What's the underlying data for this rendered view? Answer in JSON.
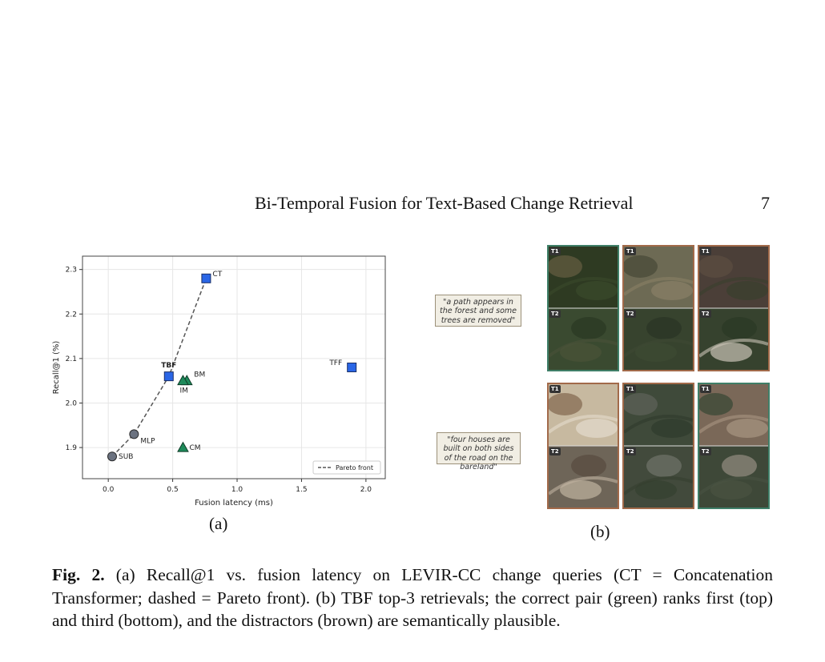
{
  "header": {
    "running_title": "Bi-Temporal Fusion for Text-Based Change Retrieval",
    "page_number": "7"
  },
  "figure": {
    "label_a": "(a)",
    "label_b": "(b)",
    "caption_label": "Fig. 2.",
    "caption_text": "(a) Recall@1 vs. fusion latency on LEVIR-CC change queries (CT = Concatenation Transformer; dashed = Pareto front). (b) TBF top-3 retrievals; the correct pair (green) ranks first (top) and third (bottom), and the distractors (brown) are semantically plausible."
  },
  "chart_data": {
    "type": "scatter",
    "xlabel": "Fusion latency (ms)",
    "ylabel": "Recall@1 (%)",
    "xlim": [
      -0.2,
      2.15
    ],
    "ylim": [
      1.83,
      2.33
    ],
    "xticks": [
      0.0,
      0.5,
      1.0,
      1.5,
      2.0
    ],
    "xtick_labels": [
      "0.0",
      "0.5",
      "1.0",
      "1.5",
      "2.0"
    ],
    "yticks": [
      1.9,
      2.0,
      2.1,
      2.2,
      2.3
    ],
    "ytick_labels": [
      "1.9",
      "2.0",
      "2.1",
      "2.2",
      "2.3"
    ],
    "grid": true,
    "legend": {
      "placement": "bottom-right",
      "entries": [
        "Pareto front"
      ]
    },
    "colors": {
      "square": "#2a66e6",
      "triangle": "#1e8a5a",
      "circle": "#6b7280"
    },
    "points": [
      {
        "name": "SUB",
        "x": 0.03,
        "y": 1.88,
        "marker": "circle"
      },
      {
        "name": "MLP",
        "x": 0.2,
        "y": 1.93,
        "marker": "circle"
      },
      {
        "name": "TBF",
        "x": 0.47,
        "y": 2.06,
        "marker": "square",
        "bold": true
      },
      {
        "name": "BM",
        "x": 0.61,
        "y": 2.05,
        "marker": "triangle"
      },
      {
        "name": "IM",
        "x": 0.58,
        "y": 2.05,
        "marker": "triangle"
      },
      {
        "name": "CM",
        "x": 0.58,
        "y": 1.9,
        "marker": "triangle"
      },
      {
        "name": "CT",
        "x": 0.76,
        "y": 2.28,
        "marker": "square"
      },
      {
        "name": "TFF",
        "x": 1.89,
        "y": 2.08,
        "marker": "square"
      }
    ],
    "pareto_front": [
      [
        0.03,
        1.88
      ],
      [
        0.2,
        1.93
      ],
      [
        0.47,
        2.06
      ],
      [
        0.76,
        2.28
      ]
    ]
  },
  "retrievals": {
    "queries": [
      "\"a path appears in the forest and some trees are removed\"",
      "\"four houses are built on both sides of the road on the bareland\""
    ],
    "time_labels": {
      "t1": "T1",
      "t2": "T2"
    },
    "border_colors": {
      "correct": "#3f7f68",
      "distractor": "#a26a4a"
    },
    "rows": [
      [
        "correct",
        "distractor",
        "distractor"
      ],
      [
        "distractor",
        "distractor",
        "correct"
      ]
    ]
  }
}
